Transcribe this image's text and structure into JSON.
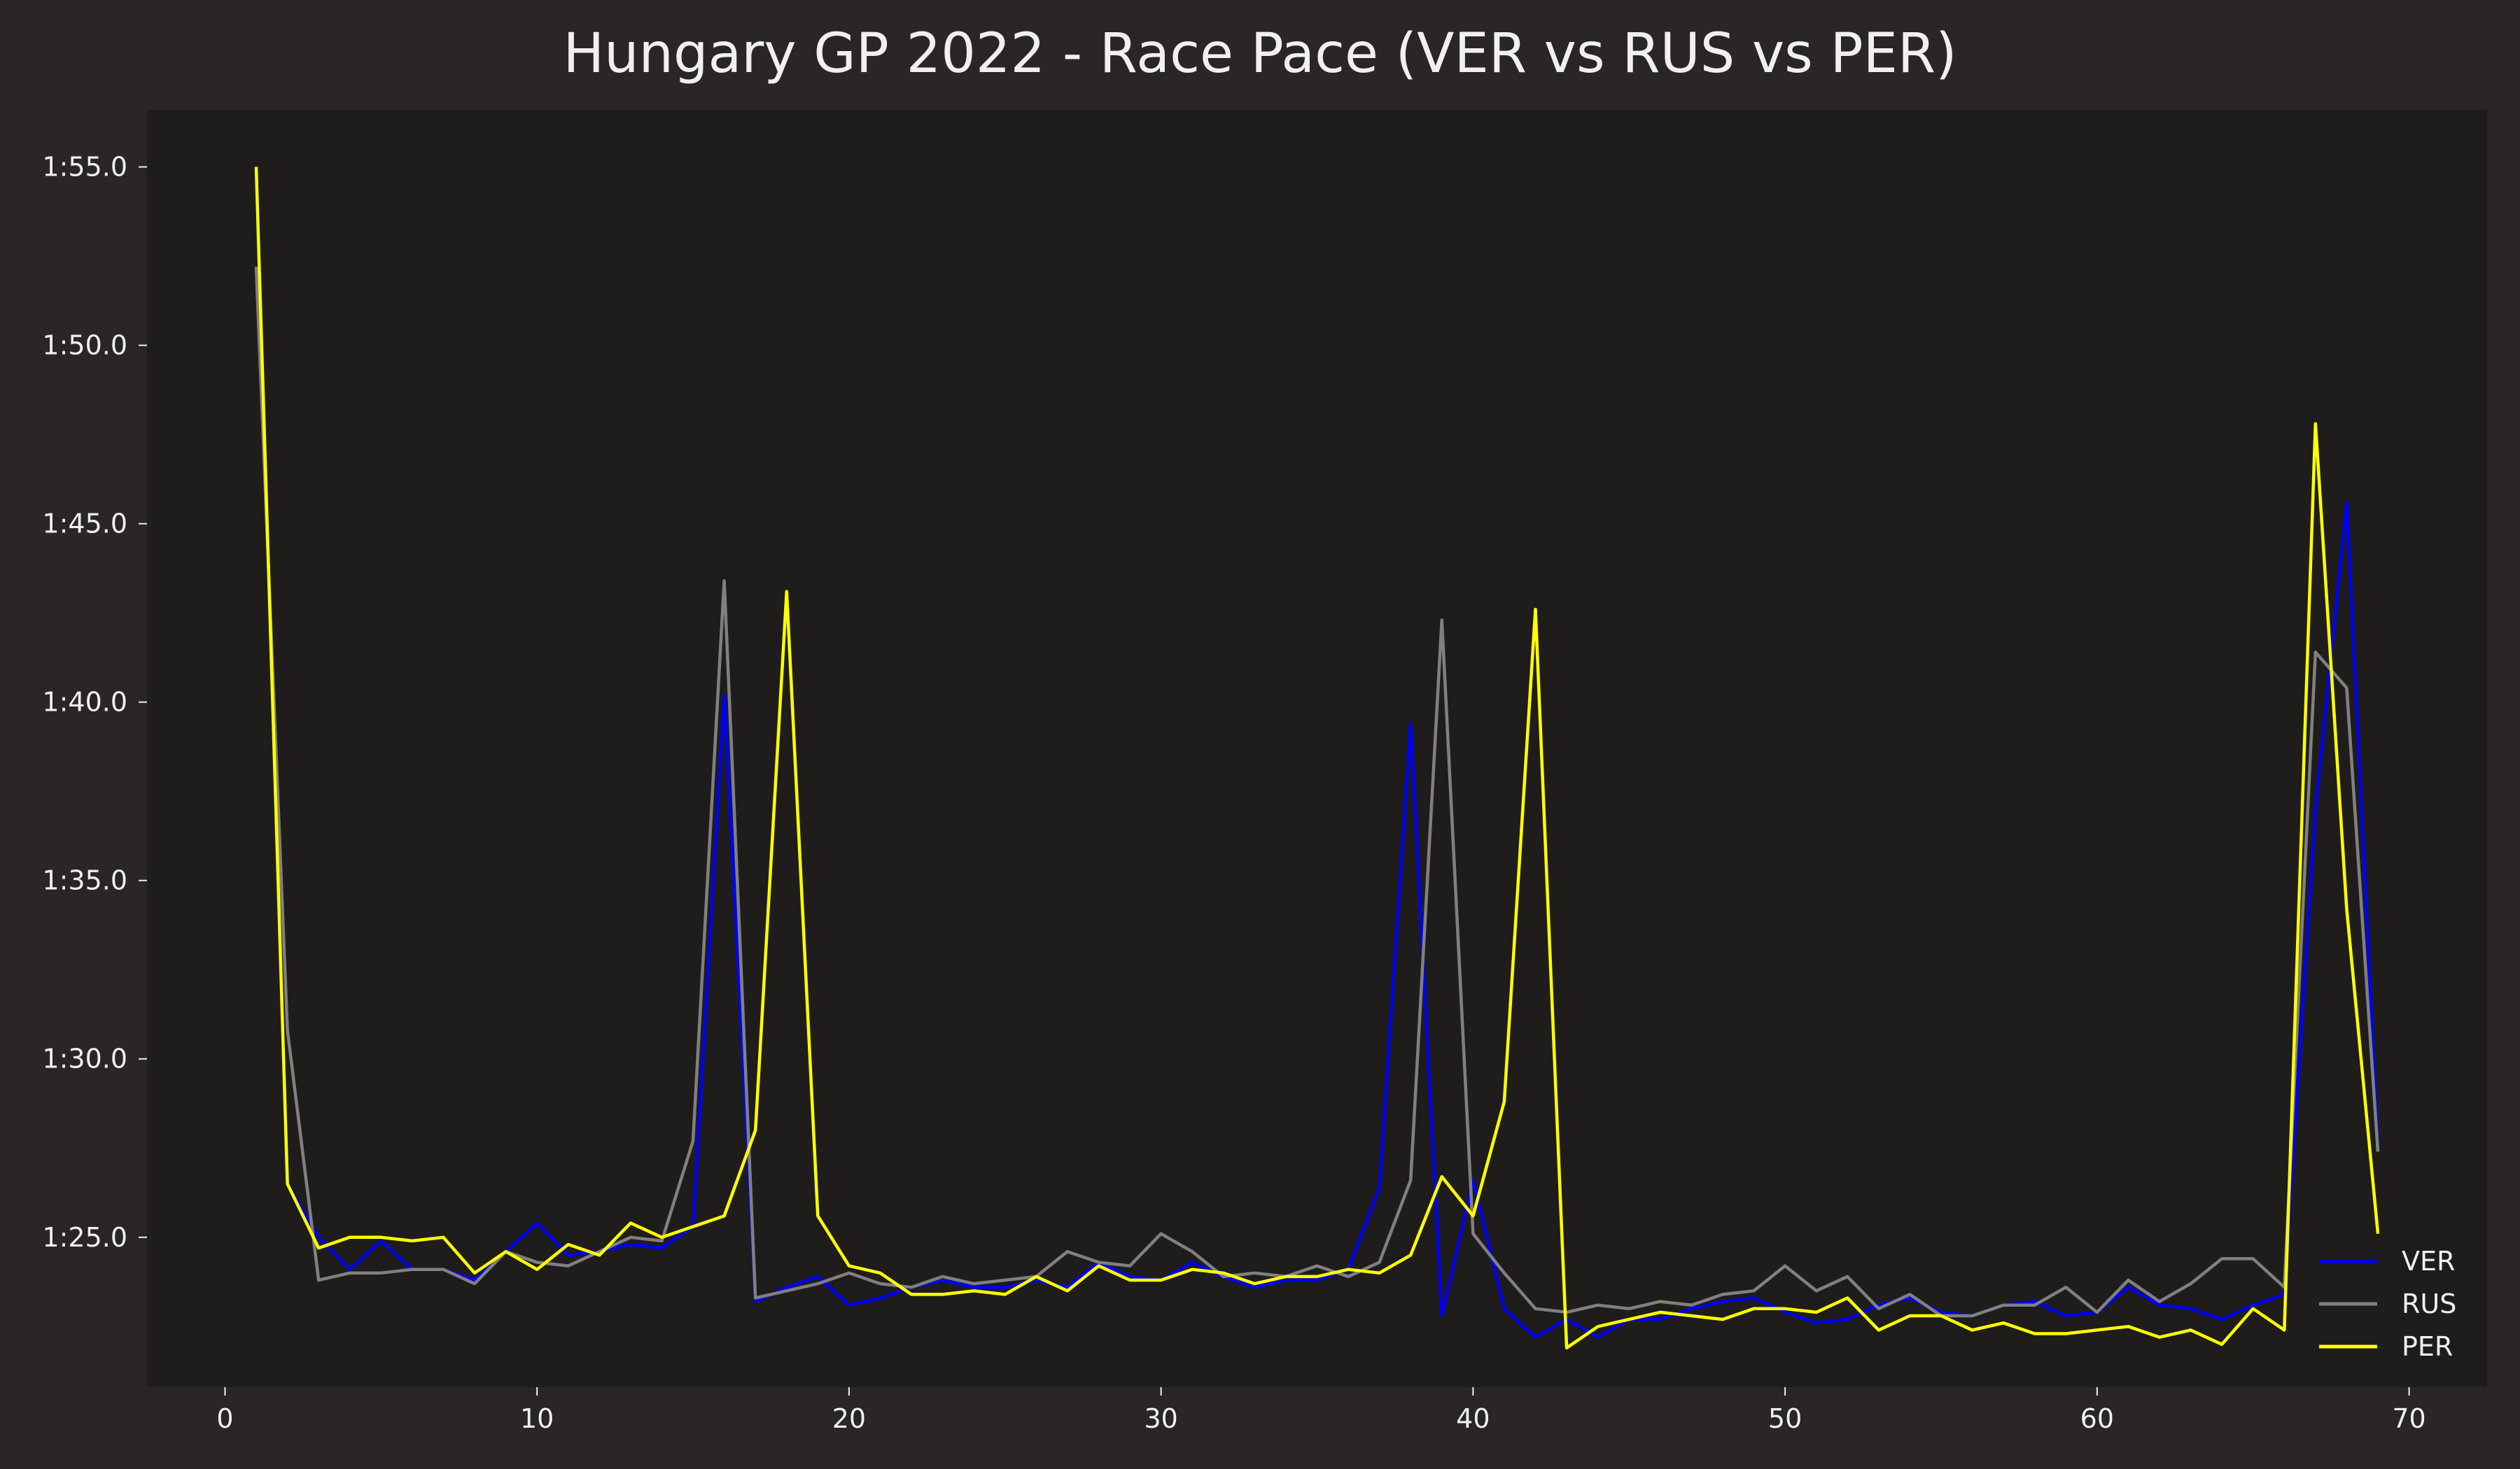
{
  "chart_data": {
    "type": "line",
    "title": "Hungary GP 2022 - Race Pace (VER vs RUS vs PER)",
    "xlabel": "",
    "ylabel": "",
    "xlim": [
      -2.5,
      72.5
    ],
    "ylim": [
      80.8,
      116.6
    ],
    "x_ticks": [
      0,
      10,
      20,
      30,
      40,
      50,
      60,
      70
    ],
    "y_ticks": [
      {
        "value": 85,
        "label": "1:25.0"
      },
      {
        "value": 90,
        "label": "1:30.0"
      },
      {
        "value": 95,
        "label": "1:35.0"
      },
      {
        "value": 100,
        "label": "1:40.0"
      },
      {
        "value": 105,
        "label": "1:45.0"
      },
      {
        "value": 110,
        "label": "1:50.0"
      },
      {
        "value": 115,
        "label": "1:55.0"
      }
    ],
    "grid": false,
    "legend_position": "bottom-right",
    "colors": {
      "figure_background": "#292625",
      "plot_background": "#1e1d1c",
      "text": "#f0f0f0"
    },
    "series": [
      {
        "name": "VER",
        "color": "#0000ff",
        "x": [
          1,
          2,
          3,
          4,
          5,
          6,
          7,
          8,
          9,
          10,
          11,
          12,
          13,
          14,
          15,
          16,
          17,
          18,
          19,
          20,
          21,
          22,
          23,
          24,
          25,
          26,
          27,
          28,
          29,
          30,
          31,
          32,
          33,
          34,
          35,
          36,
          37,
          38,
          39,
          40,
          41,
          42,
          43,
          44,
          45,
          46,
          47,
          48,
          49,
          50,
          51,
          52,
          53,
          54,
          55,
          56,
          57,
          58,
          59,
          60,
          61,
          62,
          63,
          64,
          65,
          66,
          67,
          68,
          69
        ],
        "values": [
          115.0,
          86.5,
          85.0,
          84.1,
          84.9,
          84.1,
          84.1,
          83.8,
          84.6,
          85.4,
          84.5,
          84.6,
          84.8,
          84.7,
          85.3,
          100.2,
          83.2,
          83.6,
          83.9,
          83.1,
          83.3,
          83.6,
          83.8,
          83.6,
          83.6,
          83.8,
          83.6,
          84.3,
          83.9,
          83.8,
          84.3,
          83.9,
          83.6,
          83.8,
          83.8,
          84.1,
          86.4,
          99.4,
          82.8,
          86.6,
          83.0,
          82.2,
          82.7,
          82.2,
          82.7,
          82.7,
          83.0,
          83.2,
          83.3,
          82.9,
          82.6,
          82.7,
          83.1,
          83.3,
          82.9,
          82.8,
          83.1,
          83.2,
          82.8,
          82.9,
          83.6,
          83.1,
          83.0,
          82.7,
          83.1,
          83.4,
          97.0,
          105.6,
          87.5
        ]
      },
      {
        "name": "RUS",
        "color": "#808080",
        "x": [
          1,
          2,
          3,
          4,
          5,
          6,
          7,
          8,
          9,
          10,
          11,
          12,
          13,
          14,
          15,
          16,
          17,
          18,
          19,
          20,
          21,
          22,
          23,
          24,
          25,
          26,
          27,
          28,
          29,
          30,
          31,
          32,
          33,
          34,
          35,
          36,
          37,
          38,
          39,
          40,
          41,
          42,
          43,
          44,
          45,
          46,
          47,
          48,
          49,
          50,
          51,
          52,
          53,
          54,
          55,
          56,
          57,
          58,
          59,
          60,
          61,
          62,
          63,
          64,
          65,
          66,
          67,
          68,
          69
        ],
        "values": [
          112.2,
          90.8,
          83.8,
          84.0,
          84.0,
          84.1,
          84.1,
          83.7,
          84.6,
          84.3,
          84.2,
          84.6,
          85.0,
          84.9,
          87.7,
          103.4,
          83.3,
          83.5,
          83.7,
          84.0,
          83.7,
          83.6,
          83.9,
          83.7,
          83.8,
          83.9,
          84.6,
          84.3,
          84.2,
          85.1,
          84.6,
          83.9,
          84.0,
          83.9,
          84.2,
          83.9,
          84.3,
          86.6,
          102.3,
          85.1,
          84.0,
          83.0,
          82.9,
          83.1,
          83.0,
          83.2,
          83.1,
          83.4,
          83.5,
          84.2,
          83.5,
          83.9,
          83.0,
          83.4,
          82.8,
          82.8,
          83.1,
          83.1,
          83.6,
          82.9,
          83.8,
          83.2,
          83.7,
          84.4,
          84.4,
          83.6,
          101.4,
          100.4,
          87.4
        ]
      },
      {
        "name": "PER",
        "color": "#ffff00",
        "x": [
          1,
          2,
          3,
          4,
          5,
          6,
          7,
          8,
          9,
          10,
          11,
          12,
          13,
          14,
          15,
          16,
          17,
          18,
          19,
          20,
          21,
          22,
          23,
          24,
          25,
          26,
          27,
          28,
          29,
          30,
          31,
          32,
          33,
          34,
          35,
          36,
          37,
          38,
          39,
          40,
          41,
          42,
          43,
          44,
          45,
          46,
          47,
          48,
          49,
          50,
          51,
          52,
          53,
          54,
          55,
          56,
          57,
          58,
          59,
          60,
          61,
          62,
          63,
          64,
          65,
          66,
          67,
          68,
          69
        ],
        "values": [
          115.0,
          86.5,
          84.7,
          85.0,
          85.0,
          84.9,
          85.0,
          84.0,
          84.6,
          84.1,
          84.8,
          84.5,
          85.4,
          85.0,
          85.3,
          85.6,
          88.0,
          103.1,
          85.6,
          84.2,
          84.0,
          83.4,
          83.4,
          83.5,
          83.4,
          83.9,
          83.5,
          84.2,
          83.8,
          83.8,
          84.1,
          84.0,
          83.7,
          83.9,
          83.9,
          84.1,
          84.0,
          84.5,
          86.7,
          85.6,
          88.8,
          102.6,
          81.9,
          82.5,
          82.7,
          82.9,
          82.8,
          82.7,
          83.0,
          83.0,
          82.9,
          83.3,
          82.4,
          82.8,
          82.8,
          82.4,
          82.6,
          82.3,
          82.3,
          82.4,
          82.5,
          82.2,
          82.4,
          82.0,
          83.0,
          82.4,
          107.8,
          94.2,
          85.1
        ]
      }
    ]
  }
}
